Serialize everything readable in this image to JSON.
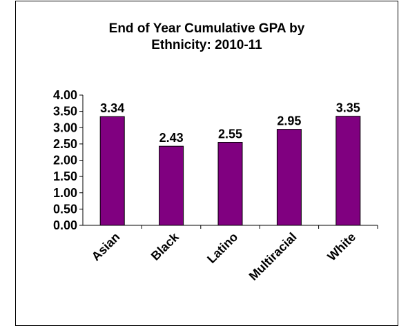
{
  "chart_data": {
    "type": "bar",
    "title": "End of Year Cumulative GPA by Ethnicity: 2010-11",
    "title_lines": [
      "End of Year Cumulative GPA by",
      "Ethnicity: 2010-11"
    ],
    "categories": [
      "Asian",
      "Black",
      "Latino",
      "Multiracial",
      "White"
    ],
    "values": [
      3.34,
      2.43,
      2.55,
      2.95,
      3.35
    ],
    "data_labels": [
      "3.34",
      "2.43",
      "2.55",
      "2.95",
      "3.35"
    ],
    "xlabel": "",
    "ylabel": "",
    "ylim": [
      0,
      4
    ],
    "yticks": [
      0,
      0.5,
      1,
      1.5,
      2,
      2.5,
      3,
      3.5,
      4
    ],
    "ytick_labels": [
      "0.00",
      "0.50",
      "1.00",
      "1.50",
      "2.00",
      "2.50",
      "3.00",
      "3.50",
      "4.00"
    ],
    "grid": false,
    "legend": "none",
    "bar_color": "#800080"
  }
}
